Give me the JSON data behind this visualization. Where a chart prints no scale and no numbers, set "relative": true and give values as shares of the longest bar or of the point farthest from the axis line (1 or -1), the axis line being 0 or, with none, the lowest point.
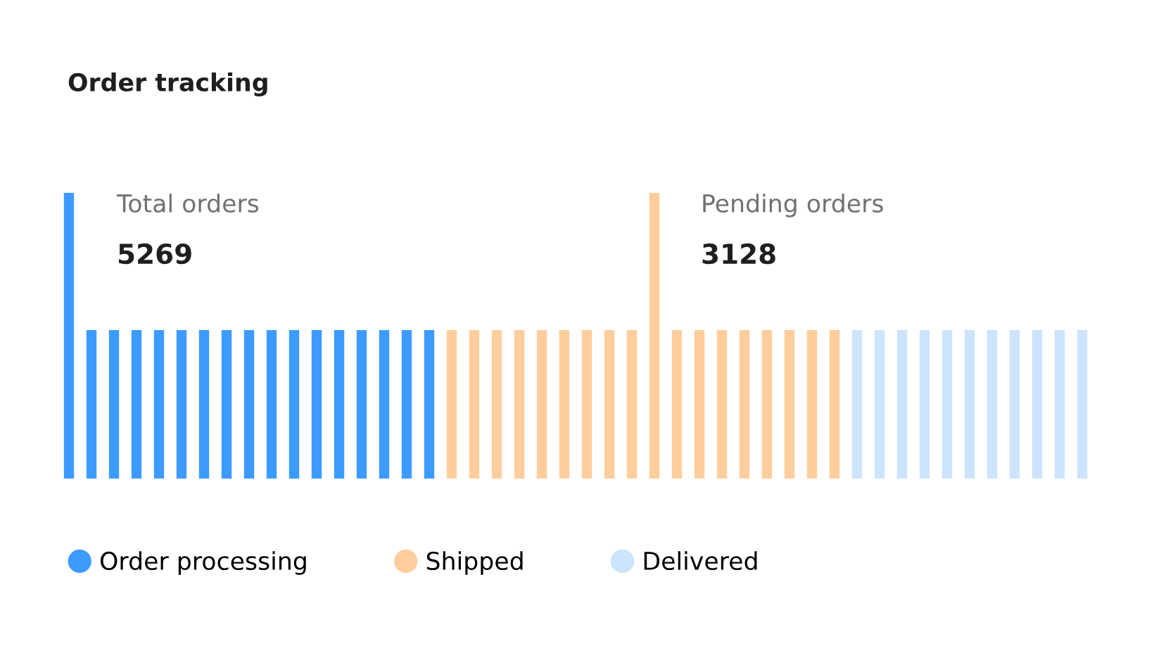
{
  "chart_data": {
    "type": "bar",
    "stacked": true,
    "title": "Order tracking",
    "relative": true,
    "legend": "bottom",
    "marker": "circle",
    "categories": [
      null,
      null,
      null,
      null,
      null,
      null,
      null,
      null,
      null,
      null,
      null,
      null,
      null,
      null,
      null,
      null,
      null,
      null,
      null,
      null,
      null,
      null,
      null,
      null,
      null,
      null,
      null,
      null,
      null,
      null,
      null,
      null,
      null,
      null,
      null,
      null,
      null,
      null,
      null,
      null,
      null,
      null,
      null,
      null,
      null,
      null
    ],
    "series": [
      {
        "name": "Order processing",
        "color": "#3d9bff",
        "values": [
          1,
          0.52,
          0.52,
          0.52,
          0.52,
          0.52,
          0.52,
          0.52,
          0.52,
          0.52,
          0.52,
          0.52,
          0.52,
          0.52,
          0.52,
          0.52,
          0.52,
          null,
          null,
          null,
          null,
          null,
          null,
          null,
          null,
          null,
          null,
          null,
          null,
          null,
          null,
          null,
          null,
          null,
          null,
          null,
          null,
          null,
          null,
          null,
          null,
          null,
          null,
          null,
          null,
          null
        ]
      },
      {
        "name": "Shipped",
        "color": "#ffce9c",
        "values": [
          null,
          null,
          null,
          null,
          null,
          null,
          null,
          null,
          null,
          null,
          null,
          null,
          null,
          null,
          null,
          null,
          null,
          0.52,
          0.52,
          0.52,
          0.52,
          0.52,
          0.52,
          0.52,
          0.52,
          0.52,
          1,
          0.52,
          0.52,
          0.52,
          0.52,
          0.52,
          0.52,
          0.52,
          0.52,
          null,
          null,
          null,
          null,
          null,
          null,
          null,
          null,
          null,
          null,
          null
        ]
      },
      {
        "name": "Delivered",
        "color": "#cce4fd",
        "values": [
          null,
          null,
          null,
          null,
          null,
          null,
          null,
          null,
          null,
          null,
          null,
          null,
          null,
          null,
          null,
          null,
          null,
          null,
          null,
          null,
          null,
          null,
          null,
          null,
          null,
          null,
          null,
          null,
          null,
          null,
          null,
          null,
          null,
          null,
          null,
          0.52,
          0.52,
          0.52,
          0.52,
          0.52,
          0.52,
          0.52,
          0.52,
          0.52,
          0.52,
          0.52
        ]
      }
    ],
    "annotations": [
      "Total orders",
      "5269",
      "Pending orders",
      "3128"
    ]
  }
}
